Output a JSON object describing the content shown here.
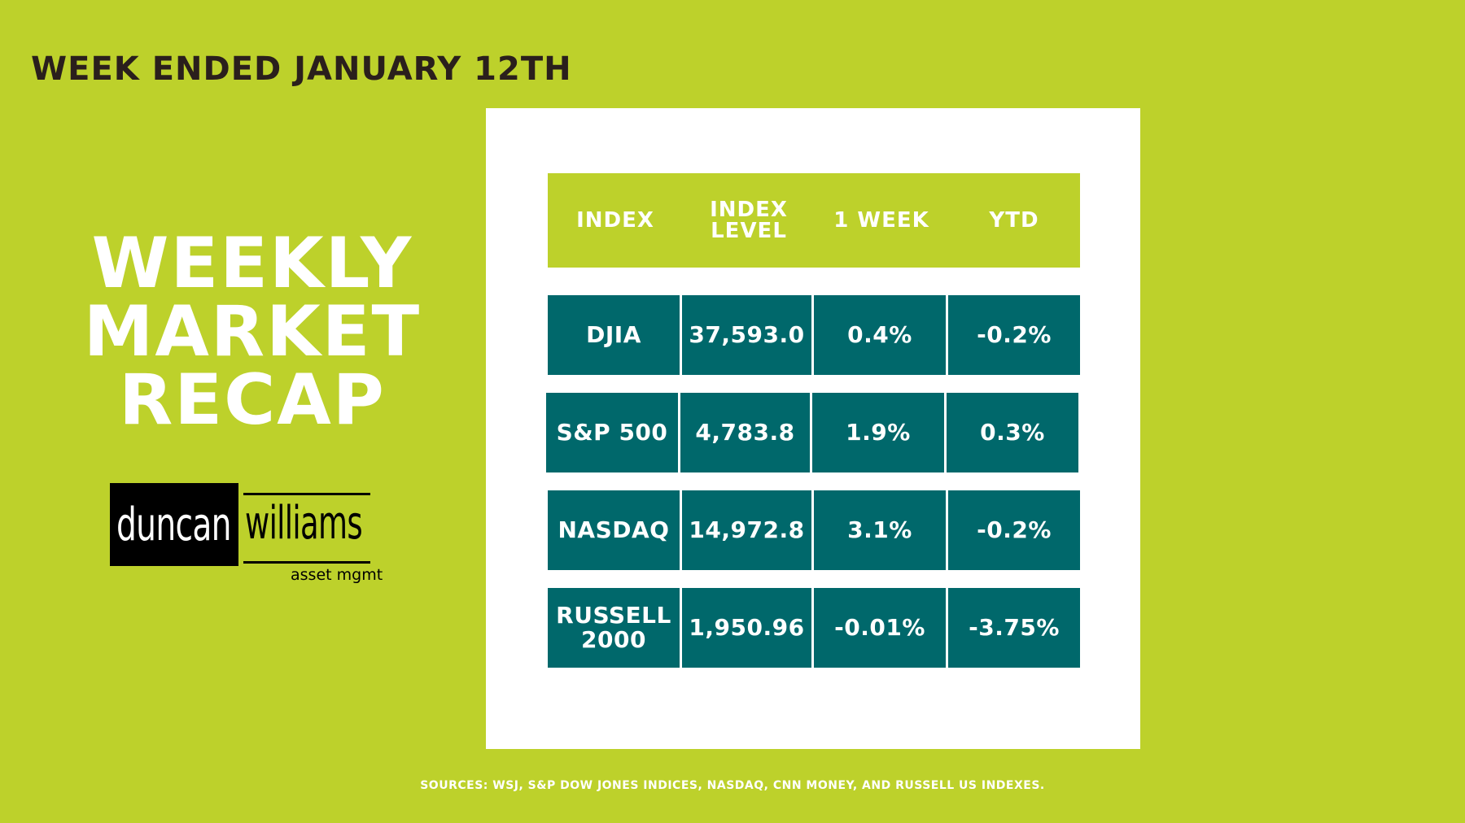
{
  "header": {
    "week_ended": "WEEK ENDED JANUARY 12TH"
  },
  "title": {
    "lines": [
      "WEEKLY",
      "MARKET",
      "RECAP"
    ]
  },
  "logo": {
    "word1": "duncan",
    "word2": "williams",
    "tagline": "asset mgmt"
  },
  "table": {
    "headers": [
      "INDEX",
      "INDEX LEVEL",
      "1 WEEK",
      "YTD"
    ],
    "rows": [
      {
        "index": "DJIA",
        "level": "37,593.0",
        "week": "0.4%",
        "ytd": "-0.2%"
      },
      {
        "index": "S&P 500",
        "level": "4,783.8",
        "week": "1.9%",
        "ytd": "0.3%"
      },
      {
        "index": "NASDAQ",
        "level": "14,972.8",
        "week": "3.1%",
        "ytd": "-0.2%"
      },
      {
        "index": "RUSSELL 2000",
        "level": "1,950.96",
        "week": "-0.01%",
        "ytd": "-3.75%"
      }
    ]
  },
  "footer": {
    "sources": "SOURCES: WSJ, S&P DOW JONES INDICES, NASDAQ, CNN  MONEY, AND  RUSSELL US INDEXES."
  },
  "colors": {
    "background": "#bdd12b",
    "table_cell": "#00686b",
    "header_text": "#2a1f1c"
  }
}
